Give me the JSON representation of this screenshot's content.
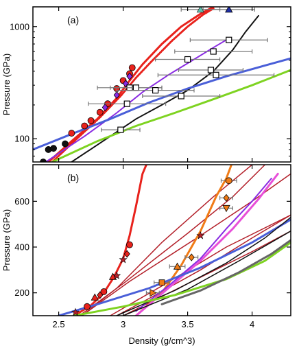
{
  "chart_data": [
    {
      "panel_label": "(a)",
      "type": "scatter",
      "yscale": "log",
      "xlim": [
        2.3,
        4.3
      ],
      "ylim": [
        62,
        1500
      ],
      "xticks": [
        2.5,
        3,
        3.5,
        4
      ],
      "yticks": [
        100,
        1000
      ],
      "ytick_labels": [
        "100",
        "1000"
      ],
      "ylabel": "Pressure (GPa)",
      "colors": {
        "red": "#e8221c",
        "black": "#111111",
        "purple": "#8a2be2",
        "blue": "#4a5fd8",
        "green": "#7ed321",
        "gray": "#777777",
        "orange": "#f07b16",
        "teal": "#5fc4b0",
        "navy": "#1f2fa8"
      },
      "curves": [
        {
          "color": "red",
          "style": "solid",
          "width": 3,
          "points": [
            [
              2.42,
              62
            ],
            [
              2.6,
              95
            ],
            [
              2.8,
              150
            ],
            [
              2.95,
              230
            ],
            [
              3.05,
              330
            ],
            [
              3.15,
              460
            ],
            [
              3.3,
              700
            ],
            [
              3.45,
              1000
            ],
            [
              3.6,
              1300
            ],
            [
              3.7,
              1500
            ]
          ]
        },
        {
          "color": "red",
          "style": "dotted",
          "width": 3,
          "points": [
            [
              2.45,
              62
            ],
            [
              2.62,
              95
            ],
            [
              2.82,
              155
            ],
            [
              2.98,
              240
            ],
            [
              3.1,
              350
            ],
            [
              3.22,
              490
            ],
            [
              3.38,
              750
            ],
            [
              3.5,
              1000
            ],
            [
              3.62,
              1280
            ],
            [
              3.7,
              1450
            ]
          ]
        },
        {
          "color": "black",
          "style": "solid",
          "width": 2,
          "points": [
            [
              2.6,
              62
            ],
            [
              2.9,
              105
            ],
            [
              3.1,
              150
            ],
            [
              3.3,
              200
            ],
            [
              3.5,
              270
            ],
            [
              3.7,
              400
            ],
            [
              3.85,
              620
            ],
            [
              3.95,
              900
            ],
            [
              4.05,
              1250
            ]
          ]
        },
        {
          "color": "purple",
          "style": "solid",
          "width": 2,
          "points": [
            [
              2.4,
              62
            ],
            [
              2.7,
              105
            ],
            [
              2.95,
              170
            ],
            [
              3.15,
              260
            ],
            [
              3.35,
              370
            ],
            [
              3.55,
              510
            ],
            [
              3.7,
              650
            ],
            [
              3.8,
              760
            ]
          ]
        },
        {
          "color": "blue",
          "style": "solid",
          "width": 3,
          "points": [
            [
              2.3,
              80
            ],
            [
              2.6,
              110
            ],
            [
              2.9,
              150
            ],
            [
              3.2,
              210
            ],
            [
              3.5,
              280
            ],
            [
              3.8,
              360
            ],
            [
              4.1,
              450
            ],
            [
              4.3,
              520
            ]
          ]
        },
        {
          "color": "green",
          "style": "solid",
          "width": 3,
          "points": [
            [
              2.45,
              62
            ],
            [
              2.8,
              95
            ],
            [
              3.1,
              130
            ],
            [
              3.4,
              170
            ],
            [
              3.7,
              225
            ],
            [
              4.0,
              300
            ],
            [
              4.3,
              410
            ]
          ]
        }
      ],
      "series": [
        {
          "marker": "filled-circle",
          "color": "black",
          "points": [
            [
              2.38,
              62
            ],
            [
              2.42,
              80
            ],
            [
              2.46,
              82
            ],
            [
              2.55,
              90
            ]
          ]
        },
        {
          "marker": "filled-circle",
          "color": "red",
          "points": [
            [
              2.6,
              112
            ],
            [
              2.7,
              130
            ],
            [
              2.75,
              145
            ],
            [
              2.82,
              172
            ],
            [
              2.88,
              205
            ],
            [
              2.95,
              280
            ],
            [
              3.0,
              330
            ],
            [
              3.05,
              380
            ],
            [
              3.07,
              430
            ]
          ]
        },
        {
          "marker": "filled-diamond",
          "color": "purple",
          "points": [
            [
              2.86,
              190
            ],
            [
              2.95,
              245
            ],
            [
              3.02,
              310
            ],
            [
              3.05,
              360
            ]
          ]
        },
        {
          "marker": "open-square",
          "color": "black",
          "xerr": [
            0.15,
            0.3,
            0.25,
            0.2,
            0.3,
            0.3,
            0.25,
            0.25,
            0.3,
            0.45,
            0.3
          ],
          "points": [
            [
              2.98,
              120
            ],
            [
              3.03,
              205
            ],
            [
              3.05,
              285
            ],
            [
              3.1,
              285
            ],
            [
              3.25,
              270
            ],
            [
              3.45,
              240
            ],
            [
              3.5,
              510
            ],
            [
              3.68,
              410
            ],
            [
              3.7,
              600
            ],
            [
              3.72,
              370
            ],
            [
              3.82,
              760
            ]
          ]
        },
        {
          "marker": "filled-triangle",
          "color": "navy",
          "xerr": [
            0.2
          ],
          "points": [
            [
              3.82,
              1420
            ]
          ]
        },
        {
          "marker": "open-triangle",
          "color": "teal",
          "xerr": [
            0.15
          ],
          "points": [
            [
              3.6,
              1420
            ]
          ]
        }
      ]
    },
    {
      "panel_label": "(b)",
      "type": "scatter",
      "xlim": [
        2.3,
        4.3
      ],
      "ylim": [
        100,
        760
      ],
      "xticks": [
        2.5,
        3,
        3.5,
        4
      ],
      "xtick_labels": [
        "2.5",
        "3",
        "3.5",
        "4"
      ],
      "yticks": [
        200,
        400,
        600
      ],
      "xlabel": "Density (g/cm^3)",
      "ylabel": "Pressure (GPa)",
      "colors": {
        "red": "#e8221c",
        "darkred": "#b3202a",
        "black": "#111111",
        "magenta": "#e84fd8",
        "purple": "#8a2be2",
        "blue": "#4a5fd8",
        "green": "#7ed321",
        "gray": "#666666",
        "orange": "#f07b16"
      },
      "curves": [
        {
          "color": "red",
          "style": "solid",
          "width": 3,
          "points": [
            [
              2.62,
              100
            ],
            [
              2.75,
              145
            ],
            [
              2.85,
              200
            ],
            [
              2.93,
              270
            ],
            [
              3.0,
              350
            ],
            [
              3.05,
              450
            ],
            [
              3.1,
              580
            ],
            [
              3.15,
              720
            ],
            [
              3.18,
              760
            ]
          ]
        },
        {
          "color": "darkred",
          "style": "solid",
          "width": 1.5,
          "points": [
            [
              2.68,
              100
            ],
            [
              2.95,
              220
            ],
            [
              3.3,
              420
            ],
            [
              3.7,
              620
            ],
            [
              4.0,
              760
            ]
          ]
        },
        {
          "color": "darkred",
          "style": "solid",
          "width": 1.5,
          "points": [
            [
              2.66,
              100
            ],
            [
              3.0,
              240
            ],
            [
              3.5,
              460
            ],
            [
              3.85,
              620
            ],
            [
              4.1,
              760
            ]
          ]
        },
        {
          "color": "darkred",
          "style": "solid",
          "width": 1.5,
          "points": [
            [
              2.68,
              100
            ],
            [
              3.05,
              250
            ],
            [
              3.6,
              450
            ],
            [
              4.0,
              600
            ],
            [
              4.3,
              720
            ]
          ]
        },
        {
          "color": "darkred",
          "style": "solid",
          "width": 1.5,
          "points": [
            [
              2.9,
              100
            ],
            [
              3.3,
              230
            ],
            [
              3.8,
              400
            ],
            [
              4.3,
              540
            ]
          ]
        },
        {
          "color": "darkred",
          "style": "solid",
          "width": 1.5,
          "points": [
            [
              3.0,
              100
            ],
            [
              3.5,
              240
            ],
            [
              4.0,
              380
            ],
            [
              4.3,
              470
            ]
          ]
        },
        {
          "color": "darkred",
          "style": "solid",
          "width": 1.5,
          "points": [
            [
              2.95,
              100
            ],
            [
              3.2,
              175
            ],
            [
              3.6,
              300
            ],
            [
              4.0,
              440
            ],
            [
              4.3,
              540
            ]
          ]
        },
        {
          "color": "orange",
          "style": "solid",
          "width": 3,
          "points": [
            [
              3.1,
              100
            ],
            [
              3.3,
              200
            ],
            [
              3.45,
              320
            ],
            [
              3.6,
              470
            ],
            [
              3.72,
              620
            ],
            [
              3.8,
              700
            ],
            [
              3.84,
              760
            ]
          ]
        },
        {
          "color": "magenta",
          "style": "solid",
          "width": 3,
          "points": [
            [
              3.1,
              100
            ],
            [
              3.35,
              220
            ],
            [
              3.6,
              340
            ],
            [
              3.85,
              480
            ],
            [
              4.05,
              610
            ],
            [
              4.2,
              720
            ]
          ]
        },
        {
          "color": "purple",
          "style": "solid",
          "width": 2,
          "points": [
            [
              3.1,
              120
            ],
            [
              3.35,
              230
            ],
            [
              3.6,
              350
            ],
            [
              3.8,
              480
            ],
            [
              4.0,
              600
            ],
            [
              4.15,
              700
            ]
          ]
        },
        {
          "color": "blue",
          "style": "solid",
          "width": 3,
          "points": [
            [
              2.5,
              100
            ],
            [
              2.8,
              150
            ],
            [
              3.2,
              220
            ],
            [
              3.6,
              310
            ],
            [
              4.0,
              420
            ],
            [
              4.3,
              520
            ]
          ]
        },
        {
          "color": "black",
          "style": "solid",
          "width": 1.5,
          "points": [
            [
              2.95,
              100
            ],
            [
              3.4,
              210
            ],
            [
              3.8,
              330
            ],
            [
              4.1,
              440
            ],
            [
              4.3,
              530
            ]
          ]
        },
        {
          "color": "black",
          "style": "solid",
          "width": 1.5,
          "points": [
            [
              3.0,
              100
            ],
            [
              3.5,
              215
            ],
            [
              3.9,
              340
            ],
            [
              4.3,
              470
            ]
          ]
        },
        {
          "color": "green",
          "style": "solid",
          "width": 3,
          "points": [
            [
              2.62,
              100
            ],
            [
              3.0,
              140
            ],
            [
              3.4,
              190
            ],
            [
              3.8,
              260
            ],
            [
              4.1,
              340
            ],
            [
              4.3,
              420
            ]
          ]
        },
        {
          "color": "gray",
          "style": "solid",
          "width": 3,
          "points": [
            [
              3.3,
              150
            ],
            [
              3.6,
              210
            ],
            [
              3.9,
              290
            ],
            [
              4.15,
              370
            ],
            [
              4.3,
              430
            ]
          ]
        }
      ],
      "series": [
        {
          "marker": "filled-circle",
          "color": "red",
          "points": [
            [
              2.72,
              140
            ],
            [
              2.85,
              205
            ],
            [
              3.05,
              410
            ]
          ]
        },
        {
          "marker": "filled-triangle",
          "color": "red",
          "points": [
            [
              2.78,
              180
            ],
            [
              2.92,
              270
            ]
          ]
        },
        {
          "marker": "filled-diamond",
          "color": "red",
          "points": [
            [
              2.82,
              190
            ],
            [
              3.03,
              370
            ]
          ]
        },
        {
          "marker": "star",
          "color": "darkred",
          "points": [
            [
              2.63,
              115
            ],
            [
              2.95,
              275
            ],
            [
              3.0,
              345
            ],
            [
              3.6,
              450
            ]
          ]
        },
        {
          "marker": "filled-square",
          "color": "orange",
          "xerr": [
            0.06
          ],
          "points": [
            [
              3.3,
              245
            ]
          ]
        },
        {
          "marker": "filled-triangle",
          "color": "orange",
          "xerr": [
            0.06
          ],
          "points": [
            [
              3.42,
              315
            ]
          ]
        },
        {
          "marker": "filled-diamond",
          "color": "orange",
          "xerr": [
            0.05
          ],
          "points": [
            [
              3.53,
              355
            ]
          ]
        },
        {
          "marker": "filled-circle",
          "color": "orange",
          "xerr": [
            0.06
          ],
          "points": [
            [
              3.82,
              690
            ]
          ]
        },
        {
          "marker": "filled-diamond",
          "color": "orange",
          "xerr": [
            0.05
          ],
          "points": [
            [
              3.8,
              615
            ]
          ]
        },
        {
          "marker": "open-triangle-down",
          "color": "orange",
          "xerr": [
            0.05
          ],
          "points": [
            [
              3.8,
              570
            ]
          ]
        },
        {
          "marker": "open-triangle-right",
          "color": "orange",
          "xerr": [
            0.05
          ],
          "points": [
            [
              3.23,
              200
            ]
          ]
        }
      ]
    }
  ]
}
